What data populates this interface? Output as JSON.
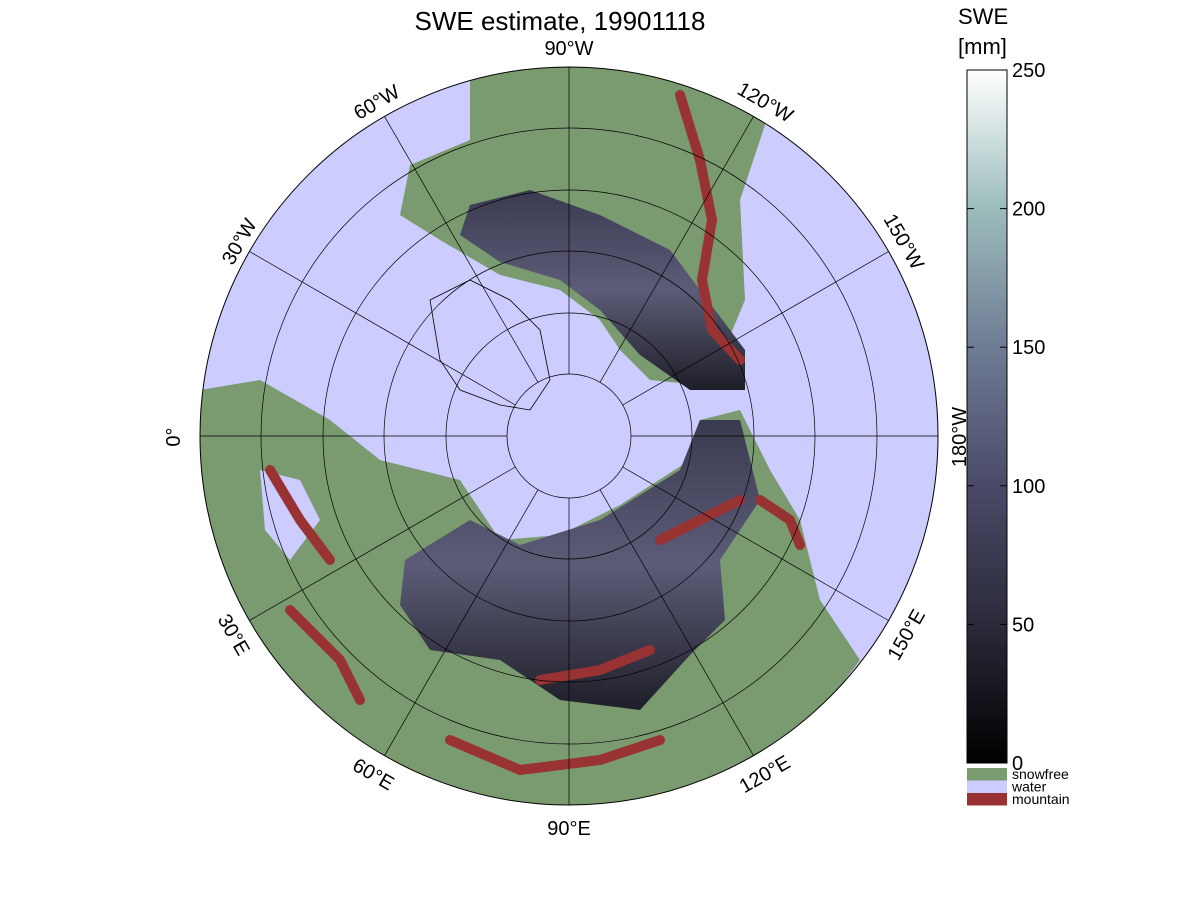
{
  "title": "SWE estimate, 19901118",
  "longitude_labels": [
    "90°W",
    "60°W",
    "30°W",
    "0°",
    "30°E",
    "60°E",
    "90°E",
    "120°E",
    "150°E",
    "180°W",
    "150°W",
    "120°W"
  ],
  "colorbar": {
    "label": [
      "SWE",
      "[mm]"
    ],
    "lim": [
      0,
      250
    ],
    "ticks": [
      0,
      50,
      100,
      150,
      200,
      250
    ],
    "colormap": [
      "#000000",
      "#2a2a3a",
      "#4a4a68",
      "#6e7c94",
      "#9cbcbc",
      "#ffffff"
    ]
  },
  "legend": [
    {
      "name": "snowfree",
      "color": "#7a9a70"
    },
    {
      "name": "water",
      "color": "#ccccff"
    },
    {
      "name": "mountain",
      "color": "#993333"
    }
  ]
}
